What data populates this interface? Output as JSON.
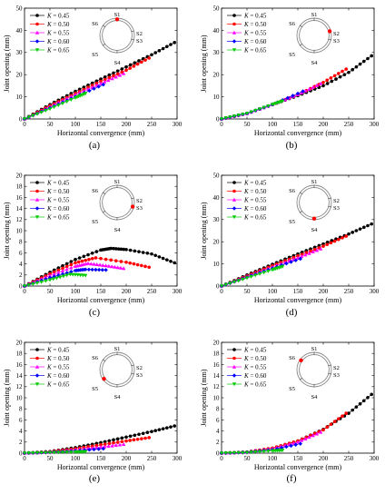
{
  "figure": {
    "panel_labels": [
      "(a)",
      "(b)",
      "(c)",
      "(d)",
      "(e)",
      "(f)"
    ],
    "legend_var": "K",
    "legend_colors": [
      "#000000",
      "#ff0000",
      "#ff00ff",
      "#0000ff",
      "#00cc00"
    ],
    "ring_labels": [
      "S1",
      "S2",
      "S3",
      "S4",
      "S5",
      "S6"
    ]
  },
  "chart_data": [
    {
      "type": "line",
      "panel": "(a)",
      "highlighted_joint": "S1",
      "xlabel": "Horizontal convergence (mm)",
      "ylabel": "Joint opening (mm)",
      "xlim": [
        0,
        300
      ],
      "ylim": [
        0,
        50
      ],
      "xticks": [
        0,
        50,
        100,
        150,
        200,
        250,
        300
      ],
      "yticks": [
        0,
        10,
        20,
        30,
        40,
        50
      ],
      "legend_position": "top-left",
      "series": [
        {
          "name": "K = 0.45",
          "x": [
            0,
            50,
            100,
            150,
            200,
            250,
            295
          ],
          "y": [
            0,
            6.5,
            12.5,
            18,
            23.5,
            29,
            34.5
          ]
        },
        {
          "name": "K = 0.50",
          "x": [
            0,
            50,
            100,
            150,
            200,
            245
          ],
          "y": [
            0,
            6,
            11.5,
            17,
            22,
            27.5
          ]
        },
        {
          "name": "K = 0.55",
          "x": [
            0,
            50,
            100,
            150,
            195
          ],
          "y": [
            0,
            5.5,
            11,
            16,
            20.5
          ]
        },
        {
          "name": "K = 0.60",
          "x": [
            0,
            50,
            100,
            155
          ],
          "y": [
            0,
            5,
            10,
            15.5
          ]
        },
        {
          "name": "K = 0.65",
          "x": [
            0,
            50,
            100,
            120
          ],
          "y": [
            0,
            4.5,
            9.5,
            11.5
          ]
        }
      ]
    },
    {
      "type": "line",
      "panel": "(b)",
      "highlighted_joint": "S2",
      "xlabel": "Horizontal convergence (mm)",
      "ylabel": "Joint opening (mm)",
      "xlim": [
        0,
        300
      ],
      "ylim": [
        0,
        50
      ],
      "xticks": [
        0,
        50,
        100,
        150,
        200,
        250,
        300
      ],
      "yticks": [
        0,
        10,
        20,
        30,
        40,
        50
      ],
      "legend_position": "top-left",
      "series": [
        {
          "name": "K = 0.45",
          "x": [
            0,
            50,
            100,
            150,
            200,
            250,
            295
          ],
          "y": [
            0,
            2.5,
            6.5,
            10.5,
            15,
            21,
            28.5
          ]
        },
        {
          "name": "K = 0.50",
          "x": [
            0,
            50,
            100,
            150,
            200,
            245
          ],
          "y": [
            0,
            2.5,
            6.5,
            11,
            16.5,
            22.5
          ]
        },
        {
          "name": "K = 0.55",
          "x": [
            0,
            50,
            100,
            150,
            195
          ],
          "y": [
            0,
            2.5,
            6.5,
            11,
            16
          ]
        },
        {
          "name": "K = 0.60",
          "x": [
            0,
            50,
            100,
            160
          ],
          "y": [
            0,
            2.5,
            6.5,
            12.5
          ]
        },
        {
          "name": "K = 0.65",
          "x": [
            0,
            50,
            100,
            120
          ],
          "y": [
            0,
            2.5,
            6.5,
            8
          ]
        }
      ]
    },
    {
      "type": "line",
      "panel": "(c)",
      "highlighted_joint": "S3",
      "xlabel": "Horizontal convergence (mm)",
      "ylabel": "Joint opening (mm)",
      "xlim": [
        0,
        300
      ],
      "ylim": [
        0,
        20
      ],
      "xticks": [
        0,
        50,
        100,
        150,
        200,
        250,
        300
      ],
      "yticks": [
        0,
        2,
        4,
        6,
        8,
        10,
        12,
        14,
        16,
        18,
        20
      ],
      "legend_position": "top-left",
      "series": [
        {
          "name": "K = 0.45",
          "x": [
            0,
            50,
            100,
            150,
            170,
            200,
            250,
            295
          ],
          "y": [
            0,
            2.5,
            4.8,
            6.5,
            6.8,
            6.6,
            5.8,
            4.2
          ]
        },
        {
          "name": "K = 0.50",
          "x": [
            0,
            50,
            100,
            140,
            200,
            245
          ],
          "y": [
            0,
            2.2,
            4.2,
            5.1,
            4.3,
            3.4
          ]
        },
        {
          "name": "K = 0.55",
          "x": [
            0,
            50,
            100,
            125,
            160,
            195
          ],
          "y": [
            0,
            1.9,
            3.6,
            4.1,
            3.7,
            3.2
          ]
        },
        {
          "name": "K = 0.60",
          "x": [
            0,
            50,
            100,
            120,
            160
          ],
          "y": [
            0,
            1.5,
            2.8,
            3,
            2.9
          ]
        },
        {
          "name": "K = 0.65",
          "x": [
            0,
            50,
            90,
            120
          ],
          "y": [
            0,
            1.1,
            2.1,
            1.9
          ]
        }
      ]
    },
    {
      "type": "line",
      "panel": "(d)",
      "highlighted_joint": "S4",
      "xlabel": "Horizontal convergence (mm)",
      "ylabel": "Joint opening (mm)",
      "xlim": [
        0,
        300
      ],
      "ylim": [
        0,
        50
      ],
      "xticks": [
        0,
        50,
        100,
        150,
        200,
        250,
        300
      ],
      "yticks": [
        0,
        10,
        20,
        30,
        40,
        50
      ],
      "legend_position": "top-left",
      "series": [
        {
          "name": "K = 0.45",
          "x": [
            0,
            50,
            100,
            150,
            200,
            250,
            295
          ],
          "y": [
            0,
            5,
            9.8,
            14.5,
            19,
            23.5,
            28
          ]
        },
        {
          "name": "K = 0.50",
          "x": [
            0,
            50,
            100,
            150,
            200,
            245
          ],
          "y": [
            0,
            4.6,
            9.2,
            13.6,
            18,
            22.5
          ]
        },
        {
          "name": "K = 0.55",
          "x": [
            0,
            50,
            100,
            150,
            195
          ],
          "y": [
            0,
            4.3,
            8.6,
            12.8,
            16.8
          ]
        },
        {
          "name": "K = 0.60",
          "x": [
            0,
            50,
            100,
            155
          ],
          "y": [
            0,
            4,
            8,
            12.3
          ]
        },
        {
          "name": "K = 0.65",
          "x": [
            0,
            50,
            100,
            120
          ],
          "y": [
            0,
            3.6,
            7.3,
            8.8
          ]
        }
      ]
    },
    {
      "type": "line",
      "panel": "(e)",
      "highlighted_joint": "S5",
      "xlabel": "Horizontal convergence (mm)",
      "ylabel": "Joint opening (mm)",
      "xlim": [
        0,
        300
      ],
      "ylim": [
        0,
        20
      ],
      "xticks": [
        0,
        50,
        100,
        150,
        200,
        250,
        300
      ],
      "yticks": [
        0,
        2,
        4,
        6,
        8,
        10,
        12,
        14,
        16,
        18,
        20
      ],
      "legend_position": "top-left",
      "series": [
        {
          "name": "K = 0.45",
          "x": [
            0,
            50,
            100,
            150,
            200,
            250,
            295
          ],
          "y": [
            0,
            0.3,
            1,
            1.9,
            2.9,
            3.9,
            4.9
          ]
        },
        {
          "name": "K = 0.50",
          "x": [
            0,
            50,
            100,
            150,
            200,
            245
          ],
          "y": [
            0,
            0.25,
            0.8,
            1.5,
            2.2,
            2.8
          ]
        },
        {
          "name": "K = 0.55",
          "x": [
            0,
            50,
            100,
            150,
            195
          ],
          "y": [
            0,
            0.2,
            0.6,
            1.1,
            1.6
          ]
        },
        {
          "name": "K = 0.60",
          "x": [
            0,
            50,
            100,
            155
          ],
          "y": [
            0,
            0.15,
            0.4,
            0.8
          ]
        },
        {
          "name": "K = 0.65",
          "x": [
            0,
            50,
            100,
            120
          ],
          "y": [
            0,
            0.1,
            0.2,
            0.25
          ]
        }
      ]
    },
    {
      "type": "line",
      "panel": "(f)",
      "highlighted_joint": "S6",
      "xlabel": "Horizontal convergence (mm)",
      "ylabel": "Joint opening (mm)",
      "xlim": [
        0,
        300
      ],
      "ylim": [
        0,
        20
      ],
      "xticks": [
        0,
        50,
        100,
        150,
        200,
        250,
        300
      ],
      "yticks": [
        0,
        2,
        4,
        6,
        8,
        10,
        12,
        14,
        16,
        18,
        20
      ],
      "legend_position": "top-left",
      "series": [
        {
          "name": "K = 0.45",
          "x": [
            0,
            50,
            100,
            150,
            200,
            250,
            295
          ],
          "y": [
            0,
            0.2,
            0.9,
            2.2,
            4.3,
            7.2,
            10.6
          ]
        },
        {
          "name": "K = 0.50",
          "x": [
            0,
            50,
            100,
            150,
            200,
            245
          ],
          "y": [
            0,
            0.2,
            0.9,
            2.2,
            4.2,
            7.2
          ]
        },
        {
          "name": "K = 0.55",
          "x": [
            0,
            50,
            100,
            150,
            195
          ],
          "y": [
            0,
            0.2,
            0.8,
            2,
            3.8
          ]
        },
        {
          "name": "K = 0.60",
          "x": [
            0,
            50,
            100,
            155
          ],
          "y": [
            0,
            0.15,
            0.6,
            1.7
          ]
        },
        {
          "name": "K = 0.65",
          "x": [
            0,
            50,
            100,
            120
          ],
          "y": [
            0,
            0.1,
            0.4,
            0.5
          ]
        }
      ]
    }
  ]
}
